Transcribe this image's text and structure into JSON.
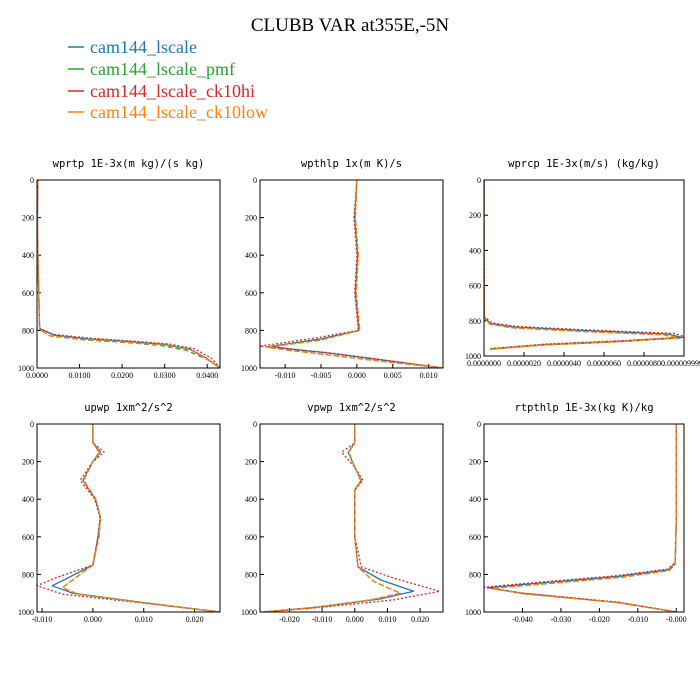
{
  "figure": {
    "title": "CLUBB VAR at355E,-5N"
  },
  "legend": [
    {
      "label": "cam144_lscale",
      "color": "#1f77b4"
    },
    {
      "label": "cam144_lscale_pmf",
      "color": "#2ca02c"
    },
    {
      "label": "cam144_lscale_ck10hi",
      "color": "#d62728"
    },
    {
      "label": "cam144_lscale_ck10low",
      "color": "#ff7f0e"
    }
  ],
  "chart_data": [
    {
      "type": "line",
      "title": "wprtp  1E-3x(m kg)/(s kg)",
      "xlim": [
        0.0,
        0.043
      ],
      "ylim": [
        1000,
        0
      ],
      "xticks": [
        0.0,
        0.01,
        0.02,
        0.03,
        0.04
      ],
      "xtick_labels": [
        "0.0000",
        "0.0100",
        "0.0200",
        "0.0300",
        "0.0400"
      ],
      "yticks": [
        0,
        200,
        400,
        600,
        800,
        1000
      ],
      "ytick_labels": [
        "0",
        "200",
        "400",
        "600",
        "800",
        "1000"
      ],
      "series": [
        {
          "name": "cam144_lscale",
          "x": [
            0.0002,
            0.0001,
            0.0002,
            0.0006,
            0.004,
            0.012,
            0.022,
            0.03,
            0.036,
            0.04,
            0.043
          ],
          "y": [
            0,
            200,
            400,
            790,
            825,
            845,
            860,
            875,
            900,
            950,
            1000
          ]
        },
        {
          "name": "cam144_lscale_pmf",
          "x": [
            0.0002,
            0.0001,
            0.0002,
            0.0006,
            0.003,
            0.011,
            0.021,
            0.029,
            0.035,
            0.04,
            0.043
          ],
          "y": [
            0,
            200,
            400,
            795,
            830,
            850,
            865,
            880,
            905,
            955,
            1000
          ]
        },
        {
          "name": "cam144_lscale_ck10hi",
          "x": [
            0.0002,
            0.0001,
            0.0002,
            0.0006,
            0.004,
            0.013,
            0.023,
            0.031,
            0.037,
            0.041,
            0.043
          ],
          "y": [
            0,
            200,
            400,
            790,
            822,
            842,
            858,
            872,
            898,
            948,
            1000
          ]
        },
        {
          "name": "cam144_lscale_ck10low",
          "x": [
            0.0002,
            0.0001,
            0.0002,
            0.0006,
            0.003,
            0.011,
            0.021,
            0.03,
            0.036,
            0.04,
            0.043
          ],
          "y": [
            0,
            200,
            400,
            795,
            828,
            848,
            863,
            878,
            902,
            952,
            1000
          ]
        }
      ]
    },
    {
      "type": "line",
      "title": "wpthlp  1x(m K)/s",
      "xlim": [
        -0.0135,
        0.012
      ],
      "ylim": [
        1000,
        0
      ],
      "xticks": [
        -0.01,
        -0.005,
        0.0,
        0.005,
        0.01
      ],
      "xtick_labels": [
        "-0.010",
        "-0.005",
        "0.000",
        "0.005",
        "0.010"
      ],
      "yticks": [
        0,
        200,
        400,
        600,
        800,
        1000
      ],
      "ytick_labels": [
        "0",
        "200",
        "400",
        "600",
        "800",
        "1000"
      ],
      "series": [
        {
          "name": "cam144_lscale",
          "x": [
            0.0,
            -0.0003,
            0.0001,
            -0.0002,
            0.0003,
            -0.005,
            -0.012,
            -0.009,
            -0.004,
            0.004,
            0.012
          ],
          "y": [
            0,
            200,
            400,
            600,
            800,
            845,
            885,
            900,
            920,
            960,
            1000
          ]
        },
        {
          "name": "cam144_lscale_pmf",
          "x": [
            0.0,
            -0.0002,
            0.0002,
            -0.0001,
            0.0004,
            -0.005,
            -0.0125,
            -0.0095,
            -0.005,
            0.003,
            0.012
          ],
          "y": [
            0,
            200,
            400,
            600,
            800,
            850,
            888,
            905,
            925,
            962,
            1000
          ]
        },
        {
          "name": "cam144_lscale_ck10hi",
          "x": [
            0.0,
            -0.0004,
            0.0,
            -0.0003,
            0.0002,
            -0.006,
            -0.0135,
            -0.01,
            -0.004,
            0.004,
            0.012
          ],
          "y": [
            0,
            200,
            400,
            600,
            800,
            842,
            884,
            898,
            918,
            958,
            1000
          ]
        },
        {
          "name": "cam144_lscale_ck10low",
          "x": [
            0.0,
            -0.0002,
            0.0002,
            -0.0001,
            0.0004,
            -0.005,
            -0.0125,
            -0.0095,
            -0.005,
            0.003,
            0.012
          ],
          "y": [
            0,
            200,
            400,
            600,
            800,
            852,
            890,
            906,
            926,
            963,
            1000
          ]
        }
      ]
    },
    {
      "type": "line",
      "title": "wprcp  1E-3x(m/s) (kg/kg)",
      "xlim": [
        0.0,
        1e-05
      ],
      "ylim": [
        1000,
        0
      ],
      "xticks": [
        0.0,
        2e-06,
        4e-06,
        6e-06,
        8e-06,
        1e-05
      ],
      "xtick_labels": [
        "0.0000000",
        "0.0000020",
        "0.0000040",
        "0.0000060",
        "0.0000080",
        "0.0000099999"
      ],
      "yticks": [
        0,
        200,
        400,
        600,
        800,
        1000
      ],
      "ytick_labels": [
        "0",
        "200",
        "400",
        "600",
        "800",
        "1000"
      ],
      "series": [
        {
          "name": "cam144_lscale",
          "x": [
            0.0,
            0.0,
            2e-08,
            3e-07,
            1.5e-06,
            5e-06,
            9.2e-06,
            9.9e-06,
            7e-06,
            3e-06,
            3e-07
          ],
          "y": [
            0,
            400,
            780,
            815,
            835,
            855,
            875,
            895,
            915,
            935,
            960
          ]
        },
        {
          "name": "cam144_lscale_pmf",
          "x": [
            0.0,
            0.0,
            2e-08,
            3e-07,
            1.4e-06,
            4.8e-06,
            9e-06,
            9.8e-06,
            6.9e-06,
            2.9e-06,
            3e-07
          ],
          "y": [
            0,
            400,
            785,
            820,
            840,
            860,
            880,
            898,
            918,
            938,
            962
          ]
        },
        {
          "name": "cam144_lscale_ck10hi",
          "x": [
            0.0,
            0.0,
            2e-08,
            4e-07,
            1.6e-06,
            5.2e-06,
            9.5e-06,
            1.01e-05,
            7.1e-06,
            3.1e-06,
            3e-07
          ],
          "y": [
            0,
            400,
            778,
            812,
            832,
            852,
            872,
            892,
            912,
            932,
            958
          ]
        },
        {
          "name": "cam144_lscale_ck10low",
          "x": [
            0.0,
            0.0,
            2e-08,
            3e-07,
            1.4e-06,
            4.8e-06,
            9e-06,
            9.7e-06,
            6.8e-06,
            2.9e-06,
            3e-07
          ],
          "y": [
            0,
            400,
            785,
            820,
            840,
            860,
            880,
            898,
            918,
            938,
            962
          ]
        }
      ]
    },
    {
      "type": "line",
      "title": "upwp  1xm^2/s^2",
      "xlim": [
        -0.011,
        0.025
      ],
      "ylim": [
        1000,
        0
      ],
      "xticks": [
        -0.01,
        0.0,
        0.01,
        0.02
      ],
      "xtick_labels": [
        "-0.010",
        "0.000",
        "0.010",
        "0.020"
      ],
      "yticks": [
        0,
        200,
        400,
        600,
        800,
        1000
      ],
      "ytick_labels": [
        "0",
        "200",
        "400",
        "600",
        "800",
        "1000"
      ],
      "series": [
        {
          "name": "cam144_lscale",
          "x": [
            0.0,
            0.0,
            0.0015,
            0.0,
            -0.002,
            0.0005,
            0.0015,
            0.001,
            0.0,
            -0.005,
            -0.008,
            -0.004,
            0.01,
            0.025
          ],
          "y": [
            0,
            100,
            150,
            200,
            300,
            400,
            500,
            600,
            750,
            820,
            860,
            900,
            950,
            1000
          ]
        },
        {
          "name": "cam144_lscale_pmf",
          "x": [
            0.0,
            0.0,
            0.0012,
            0.0,
            -0.0018,
            0.0006,
            0.0015,
            0.0012,
            0.0,
            -0.004,
            -0.006,
            -0.003,
            0.01,
            0.025
          ],
          "y": [
            0,
            100,
            150,
            200,
            300,
            400,
            500,
            600,
            750,
            830,
            870,
            905,
            952,
            1000
          ]
        },
        {
          "name": "cam144_lscale_ck10hi",
          "x": [
            0.0,
            0.0,
            0.0022,
            0.0,
            -0.0025,
            0.0004,
            0.0014,
            0.001,
            0.0,
            -0.007,
            -0.011,
            -0.006,
            0.009,
            0.025
          ],
          "y": [
            0,
            100,
            150,
            200,
            300,
            400,
            500,
            600,
            750,
            815,
            860,
            905,
            950,
            1000
          ]
        },
        {
          "name": "cam144_lscale_ck10low",
          "x": [
            0.0,
            0.0,
            0.0013,
            0.0,
            -0.0019,
            0.0006,
            0.0015,
            0.0012,
            0.0,
            -0.004,
            -0.006,
            -0.003,
            0.01,
            0.025
          ],
          "y": [
            0,
            100,
            150,
            200,
            300,
            400,
            500,
            600,
            750,
            830,
            870,
            905,
            952,
            1000
          ]
        }
      ]
    },
    {
      "type": "line",
      "title": "vpwp  1xm^2/s^2",
      "xlim": [
        -0.029,
        0.027
      ],
      "ylim": [
        1000,
        0
      ],
      "xticks": [
        -0.02,
        -0.01,
        0.0,
        0.01,
        0.02
      ],
      "xtick_labels": [
        "-0.020",
        "-0.010",
        "0.000",
        "0.010",
        "0.020"
      ],
      "yticks": [
        0,
        200,
        400,
        600,
        800,
        1000
      ],
      "ytick_labels": [
        "0",
        "200",
        "400",
        "600",
        "800",
        "1000"
      ],
      "series": [
        {
          "name": "cam144_lscale",
          "x": [
            0.0,
            0.0,
            -0.002,
            0.0,
            0.002,
            0.0,
            0.0,
            0.001,
            0.008,
            0.018,
            0.008,
            -0.012,
            -0.028
          ],
          "y": [
            0,
            100,
            150,
            230,
            300,
            350,
            600,
            760,
            830,
            890,
            930,
            975,
            1000
          ]
        },
        {
          "name": "cam144_lscale_pmf",
          "x": [
            0.0,
            0.0,
            -0.0018,
            0.0,
            0.0018,
            0.0,
            0.0,
            0.001,
            0.006,
            0.014,
            0.005,
            -0.013,
            -0.028
          ],
          "y": [
            0,
            100,
            150,
            230,
            300,
            350,
            600,
            760,
            840,
            900,
            935,
            978,
            1000
          ]
        },
        {
          "name": "cam144_lscale_ck10hi",
          "x": [
            0.0,
            0.0,
            -0.004,
            0.0,
            0.0025,
            0.0,
            0.0,
            0.002,
            0.012,
            0.026,
            0.012,
            -0.01,
            -0.028
          ],
          "y": [
            0,
            100,
            150,
            230,
            300,
            350,
            600,
            760,
            820,
            890,
            935,
            975,
            1000
          ]
        },
        {
          "name": "cam144_lscale_ck10low",
          "x": [
            0.0,
            0.0,
            -0.0019,
            0.0,
            0.0019,
            0.0,
            0.0,
            0.001,
            0.006,
            0.014,
            0.005,
            -0.013,
            -0.028
          ],
          "y": [
            0,
            100,
            150,
            230,
            300,
            350,
            600,
            760,
            840,
            900,
            935,
            978,
            1000
          ]
        }
      ]
    },
    {
      "type": "line",
      "title": "rtpthlp  1E-3x(kg K)/kg",
      "xlim": [
        -0.05,
        0.002
      ],
      "ylim": [
        1000,
        0
      ],
      "xticks": [
        -0.04,
        -0.03,
        -0.02,
        -0.01,
        0.0
      ],
      "xtick_labels": [
        "-0.040",
        "-0.030",
        "-0.020",
        "-0.010",
        "-0.000"
      ],
      "yticks": [
        0,
        200,
        400,
        600,
        800,
        1000
      ],
      "ytick_labels": [
        "0",
        "200",
        "400",
        "600",
        "800",
        "1000"
      ],
      "series": [
        {
          "name": "cam144_lscale",
          "x": [
            0.0,
            0.0,
            -0.0003,
            -0.002,
            -0.015,
            -0.035,
            -0.049,
            -0.04,
            -0.015,
            0.0
          ],
          "y": [
            0,
            500,
            740,
            775,
            810,
            845,
            870,
            900,
            950,
            1000
          ]
        },
        {
          "name": "cam144_lscale_pmf",
          "x": [
            0.0,
            0.0,
            -0.0003,
            -0.0018,
            -0.014,
            -0.034,
            -0.048,
            -0.039,
            -0.014,
            0.0
          ],
          "y": [
            0,
            500,
            745,
            780,
            815,
            850,
            875,
            905,
            952,
            1000
          ]
        },
        {
          "name": "cam144_lscale_ck10hi",
          "x": [
            0.0,
            0.0,
            -0.0003,
            -0.0022,
            -0.016,
            -0.036,
            -0.05,
            -0.041,
            -0.015,
            0.0
          ],
          "y": [
            0,
            500,
            738,
            772,
            808,
            842,
            868,
            898,
            948,
            1000
          ]
        },
        {
          "name": "cam144_lscale_ck10low",
          "x": [
            0.0,
            0.0,
            -0.0003,
            -0.0018,
            -0.014,
            -0.034,
            -0.048,
            -0.039,
            -0.014,
            0.0
          ],
          "y": [
            0,
            500,
            745,
            780,
            815,
            850,
            875,
            905,
            952,
            1000
          ]
        }
      ]
    }
  ]
}
